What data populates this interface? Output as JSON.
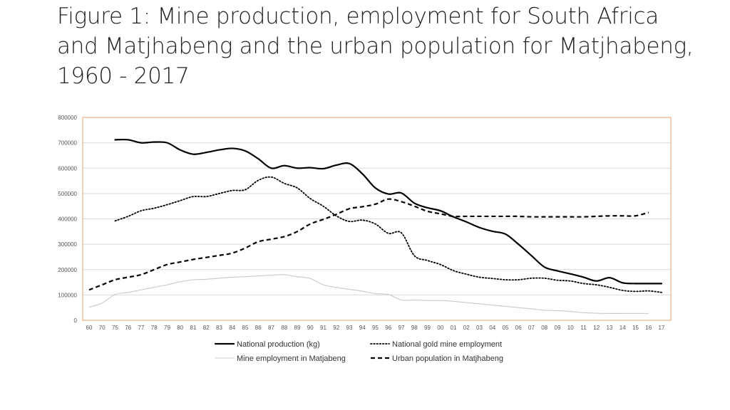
{
  "slide": {
    "title": "Figure 1: Mine production, employment for South Africa and Matjhabeng and the urban population for Matjhabeng, 1960 - 2017"
  },
  "colors": {
    "plot_border": "#e8a36e",
    "gridline": "#d9d9d9",
    "axis_line": "#bfbfbf",
    "series_dark": "#000000",
    "series_light": "#c8c8c8"
  },
  "chart_data": {
    "type": "line",
    "title": "",
    "xlabel": "",
    "ylabel": "",
    "ylim": [
      0,
      800000
    ],
    "yticks": [
      "0",
      "100000",
      "200000",
      "300000",
      "400000",
      "500000",
      "600000",
      "700000",
      "800000"
    ],
    "grid": true,
    "legend_position": "bottom",
    "categories": [
      "60",
      "70",
      "75",
      "76",
      "77",
      "78",
      "79",
      "80",
      "81",
      "82",
      "83",
      "84",
      "85",
      "86",
      "87",
      "88",
      "89",
      "90",
      "91",
      "92",
      "93",
      "94",
      "95",
      "96",
      "97",
      "98",
      "99",
      "00",
      "01",
      "02",
      "03",
      "04",
      "05",
      "06",
      "07",
      "08",
      "09",
      "10",
      "11",
      "12",
      "13",
      "14",
      "15",
      "16",
      "17"
    ],
    "series": [
      {
        "name": "National production (kg)",
        "style": "solid-thick",
        "values": [
          null,
          null,
          712000,
          712000,
          700000,
          703000,
          700000,
          672000,
          655000,
          662000,
          672000,
          678000,
          668000,
          637000,
          600000,
          610000,
          600000,
          602000,
          598000,
          612000,
          618000,
          578000,
          522000,
          498000,
          502000,
          462000,
          444000,
          432000,
          408000,
          388000,
          366000,
          351000,
          340000,
          300000,
          255000,
          210000,
          195000,
          183000,
          170000,
          155000,
          168000,
          148000,
          145000,
          145000,
          145000
        ]
      },
      {
        "name": "National gold mine employment",
        "style": "dotted",
        "values": [
          null,
          null,
          392000,
          410000,
          432000,
          442000,
          456000,
          472000,
          488000,
          488000,
          500000,
          512000,
          515000,
          552000,
          565000,
          540000,
          522000,
          480000,
          450000,
          412000,
          390000,
          395000,
          380000,
          343000,
          345000,
          255000,
          236000,
          220000,
          196000,
          182000,
          170000,
          165000,
          160000,
          160000,
          166000,
          166000,
          158000,
          155000,
          145000,
          140000,
          130000,
          118000,
          114000,
          116000,
          110000
        ]
      },
      {
        "name": "Mine employment in Matjabeng",
        "style": "solid-light",
        "values": [
          52000,
          68000,
          102000,
          110000,
          120000,
          130000,
          140000,
          152000,
          160000,
          162000,
          166000,
          170000,
          172000,
          175000,
          178000,
          180000,
          172000,
          165000,
          140000,
          130000,
          122000,
          115000,
          105000,
          102000,
          80000,
          80000,
          78000,
          78000,
          75000,
          70000,
          65000,
          60000,
          55000,
          50000,
          45000,
          40000,
          38000,
          35000,
          30000,
          28000,
          27000,
          27000,
          27000,
          27000,
          null
        ]
      },
      {
        "name": "Urban population in Matjhabeng",
        "style": "dashed",
        "values": [
          120000,
          140000,
          160000,
          170000,
          180000,
          200000,
          220000,
          230000,
          240000,
          248000,
          256000,
          265000,
          285000,
          310000,
          320000,
          330000,
          350000,
          380000,
          398000,
          418000,
          440000,
          448000,
          458000,
          478000,
          468000,
          450000,
          430000,
          420000,
          410000,
          410000,
          410000,
          410000,
          410000,
          410000,
          408000,
          408000,
          408000,
          408000,
          408000,
          410000,
          412000,
          412000,
          412000,
          425000,
          null
        ]
      }
    ]
  }
}
